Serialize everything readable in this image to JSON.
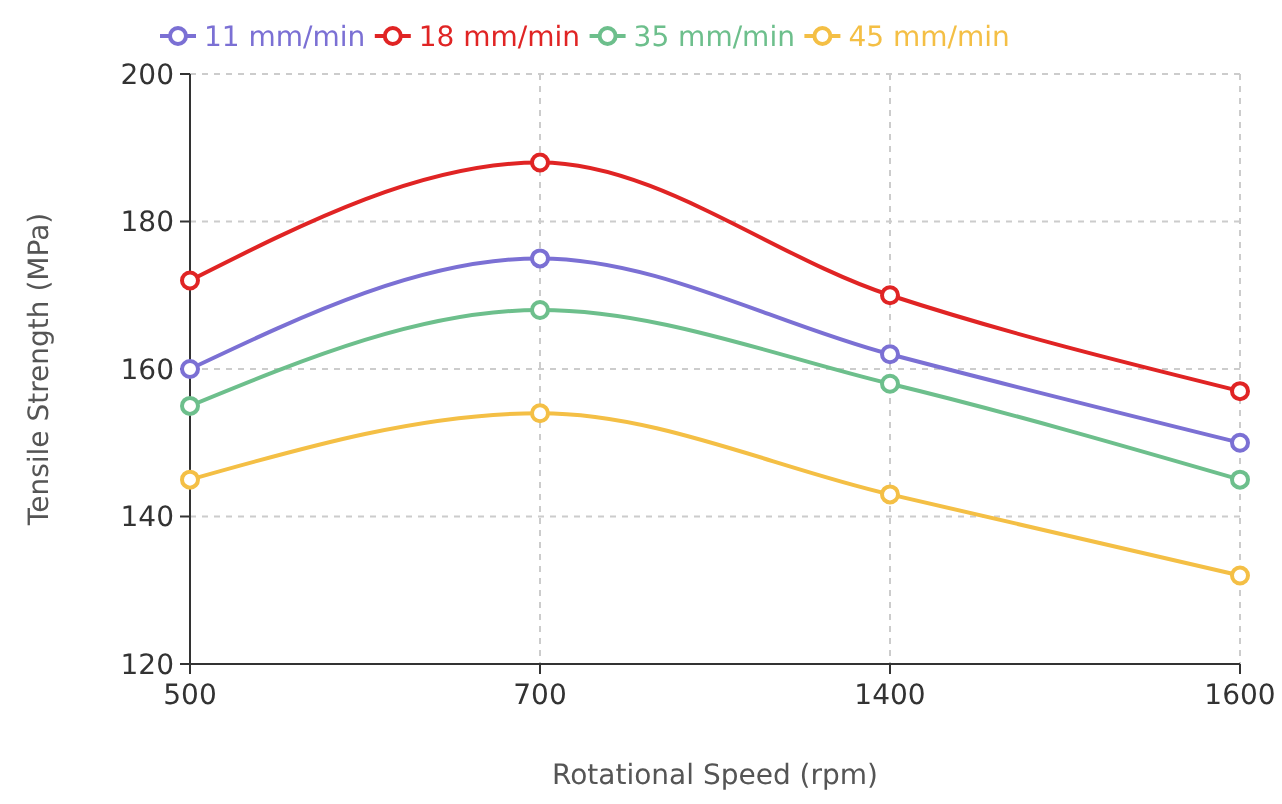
{
  "chart_data": {
    "type": "line",
    "xlabel": "Rotational Speed (rpm)",
    "ylabel": "Tensile Strength (MPa)",
    "categories": [
      "500",
      "700",
      "1400",
      "1600"
    ],
    "series": [
      {
        "name": "11 mm/min",
        "color": "#7b70d4",
        "values": [
          160,
          175,
          162,
          150
        ]
      },
      {
        "name": "18 mm/min",
        "color": "#e02424",
        "values": [
          172,
          188,
          170,
          157
        ]
      },
      {
        "name": "35 mm/min",
        "color": "#6dbf8c",
        "values": [
          155,
          168,
          158,
          145
        ]
      },
      {
        "name": "45 mm/min",
        "color": "#f4bf45",
        "values": [
          145,
          154,
          143,
          132
        ]
      }
    ],
    "ylim": [
      120,
      200
    ],
    "yticks": [
      120,
      140,
      160,
      180,
      200
    ],
    "grid": true,
    "legend": "top",
    "marker": "circle",
    "line_style": "solid"
  }
}
